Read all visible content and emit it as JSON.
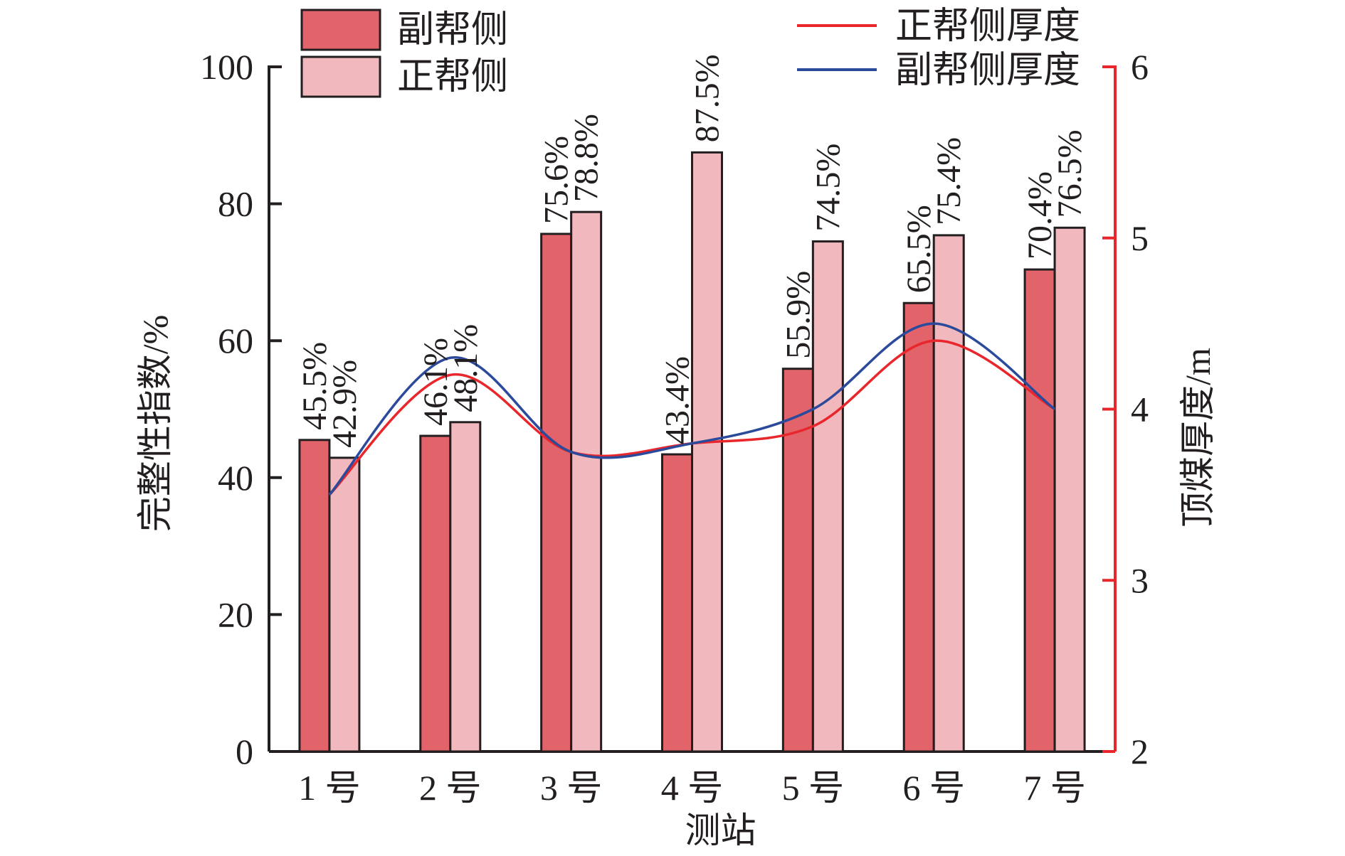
{
  "chart_data": {
    "type": "bar",
    "categories": [
      "1 号",
      "2 号",
      "3 号",
      "4 号",
      "5 号",
      "6 号",
      "7 号"
    ],
    "series": [
      {
        "name": "副帮侧",
        "type": "bar",
        "axis": "left",
        "color": "#e2636a",
        "values": [
          45.5,
          46.1,
          75.6,
          43.4,
          55.9,
          65.5,
          70.4
        ],
        "labels": [
          "45.5%",
          "46.1%",
          "75.6%",
          "43.4%",
          "55.9%",
          "65.5%",
          "70.4%"
        ]
      },
      {
        "name": "正帮侧",
        "type": "bar",
        "axis": "left",
        "color": "#f1b8bd",
        "values": [
          42.9,
          48.1,
          78.8,
          87.5,
          74.5,
          75.4,
          76.5
        ],
        "labels": [
          "42.9%",
          "48.1%",
          "78.8%",
          "87.5%",
          "74.5%",
          "75.4%",
          "76.5%"
        ]
      },
      {
        "name": "正帮侧厚度",
        "type": "line",
        "axis": "right",
        "color": "#e8262b",
        "values": [
          3.5,
          4.2,
          3.75,
          3.8,
          3.9,
          4.4,
          4.0
        ]
      },
      {
        "name": "副帮侧厚度",
        "type": "line",
        "axis": "right",
        "color": "#2b4a9b",
        "values": [
          3.5,
          4.3,
          3.75,
          3.8,
          4.0,
          4.5,
          4.0
        ]
      }
    ],
    "xlabel": "测站",
    "ylabel": "完整性指数/%",
    "y2label": "顶煤厚度/m",
    "ylim": [
      0,
      100
    ],
    "yticks": [
      "0",
      "20",
      "40",
      "60",
      "80",
      "100"
    ],
    "y2lim": [
      2,
      6
    ],
    "y2ticks": [
      "2",
      "3",
      "4",
      "5",
      "6"
    ],
    "y2_axis_color": "#e8262b",
    "grid": false,
    "legend": [
      {
        "position": "top-left",
        "entries": [
          "副帮侧",
          "正帮侧"
        ]
      },
      {
        "position": "top-right",
        "entries": [
          "正帮侧厚度",
          "副帮侧厚度"
        ]
      }
    ]
  }
}
